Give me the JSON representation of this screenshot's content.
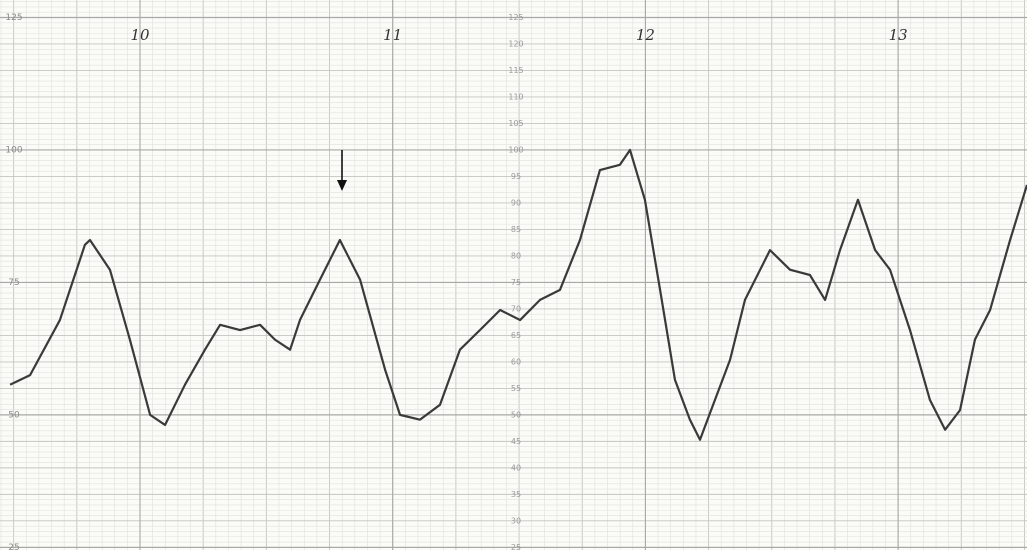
{
  "chart_data": {
    "type": "line",
    "x": [
      9.486,
      9.565,
      9.683,
      9.782,
      9.802,
      9.881,
      9.96,
      10.04,
      10.099,
      10.178,
      10.257,
      10.317,
      10.396,
      10.475,
      10.534,
      10.594,
      10.633,
      10.712,
      10.791,
      10.871,
      10.97,
      11.029,
      11.108,
      11.187,
      11.266,
      11.345,
      11.425,
      11.504,
      11.583,
      11.662,
      11.741,
      11.82,
      11.899,
      11.939,
      11.998,
      12.058,
      12.117,
      12.176,
      12.216,
      12.275,
      12.335,
      12.394,
      12.493,
      12.572,
      12.651,
      12.711,
      12.77,
      12.841,
      12.909,
      12.968,
      13.047,
      13.126,
      13.186,
      13.245,
      13.304,
      13.364,
      13.443,
      13.51
    ],
    "series": [
      {
        "color": "#3a3a3a",
        "values": [
          55.7,
          57.5,
          67.9,
          82.1,
          83.0,
          77.4,
          64.2,
          50.0,
          48.1,
          55.7,
          62.3,
          67.0,
          66.0,
          67.0,
          64.2,
          62.3,
          67.9,
          75.5,
          83.0,
          75.5,
          58.5,
          50.0,
          49.1,
          51.9,
          62.3,
          66.0,
          69.8,
          67.9,
          71.7,
          73.6,
          83.0,
          96.2,
          97.2,
          100,
          90.6,
          73.6,
          56.6,
          49.1,
          45.3,
          52.8,
          60.4,
          71.7,
          81.1,
          77.4,
          76.4,
          71.7,
          81.1,
          90.6,
          81.1,
          77.4,
          66.0,
          52.8,
          47.2,
          50.9,
          64.2,
          69.8,
          83.0,
          93.4
        ]
      }
    ],
    "xlim": [
      9.446,
      13.51
    ],
    "xticks": [
      10,
      11,
      12,
      13
    ],
    "ylim": [
      24.5,
      128.3
    ],
    "yticks": [
      25,
      30,
      35,
      40,
      45,
      50,
      55,
      60,
      65,
      70,
      75,
      80,
      85,
      90,
      95,
      100,
      105,
      110,
      115,
      120,
      125
    ],
    "grid": true
  }
}
